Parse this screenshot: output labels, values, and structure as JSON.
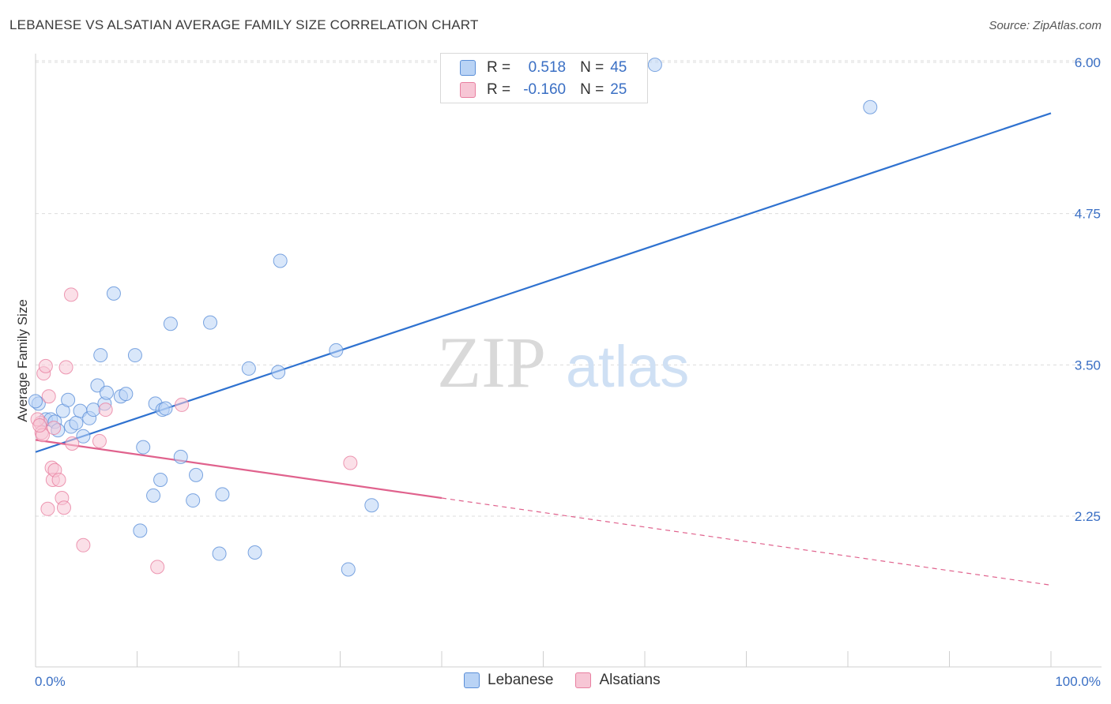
{
  "header": {
    "title": "LEBANESE VS ALSATIAN AVERAGE FAMILY SIZE CORRELATION CHART",
    "source": "Source: ZipAtlas.com"
  },
  "watermark": {
    "zip": "ZIP",
    "atlas": "atlas"
  },
  "legend_top": [
    {
      "r_label": "R =",
      "r_value": "0.518",
      "n_label": "N =",
      "n_value": "45"
    },
    {
      "r_label": "R =",
      "r_value": "-0.160",
      "n_label": "N =",
      "n_value": "25"
    }
  ],
  "legend_bottom": [
    {
      "label": "Lebanese"
    },
    {
      "label": "Alsatians"
    }
  ],
  "colors": {
    "lebanese_fill": "#b9d3f5",
    "lebanese_stroke": "#5b8fd8",
    "lebanese_line": "#2f72d0",
    "alsatian_fill": "#f7c6d5",
    "alsatian_stroke": "#e87fa0",
    "alsatian_line": "#e0628d",
    "tick_label": "#3a6fc4",
    "grid": "#dcdcdc"
  },
  "chart_data": {
    "type": "scatter",
    "title": "LEBANESE VS ALSATIAN AVERAGE FAMILY SIZE CORRELATION CHART",
    "xlabel": "",
    "ylabel": "Average Family Size",
    "xlim": [
      0,
      100
    ],
    "ylim": [
      1.2,
      6.2
    ],
    "y_ticks": [
      2.25,
      3.5,
      4.75,
      6.0
    ],
    "y_tick_labels": [
      "2.25",
      "3.50",
      "4.75",
      "6.00"
    ],
    "x_tick_labels": [
      "0.0%",
      "100.0%"
    ],
    "x_minor_ticks": [
      0,
      10,
      20,
      30,
      40,
      50,
      60,
      70,
      80,
      90,
      100
    ],
    "grid": true,
    "series": [
      {
        "name": "Lebanese",
        "points": [
          [
            0.3,
            3.18
          ],
          [
            1.0,
            3.05
          ],
          [
            1.5,
            3.05
          ],
          [
            1.9,
            3.03
          ],
          [
            2.2,
            2.96
          ],
          [
            2.7,
            3.12
          ],
          [
            3.2,
            3.21
          ],
          [
            3.5,
            2.99
          ],
          [
            4.0,
            3.02
          ],
          [
            4.4,
            3.12
          ],
          [
            4.7,
            2.91
          ],
          [
            5.3,
            3.06
          ],
          [
            5.7,
            3.13
          ],
          [
            6.1,
            3.33
          ],
          [
            6.4,
            3.58
          ],
          [
            6.8,
            3.18
          ],
          [
            7.0,
            3.27
          ],
          [
            7.7,
            4.09
          ],
          [
            8.4,
            3.24
          ],
          [
            8.9,
            3.26
          ],
          [
            9.8,
            3.58
          ],
          [
            10.3,
            2.13
          ],
          [
            10.6,
            2.82
          ],
          [
            11.6,
            2.42
          ],
          [
            11.8,
            3.18
          ],
          [
            12.3,
            2.55
          ],
          [
            12.5,
            3.13
          ],
          [
            12.8,
            3.14
          ],
          [
            13.3,
            3.84
          ],
          [
            14.3,
            2.74
          ],
          [
            15.5,
            2.38
          ],
          [
            15.8,
            2.59
          ],
          [
            17.2,
            3.85
          ],
          [
            18.1,
            1.94
          ],
          [
            18.4,
            2.43
          ],
          [
            21.0,
            3.47
          ],
          [
            21.6,
            1.95
          ],
          [
            23.9,
            3.44
          ],
          [
            24.1,
            4.36
          ],
          [
            29.6,
            3.62
          ],
          [
            30.8,
            1.81
          ],
          [
            33.1,
            2.34
          ],
          [
            61.0,
            5.98
          ],
          [
            82.2,
            5.63
          ],
          [
            0.0,
            3.2
          ]
        ],
        "trend": {
          "x": [
            0,
            100
          ],
          "y": [
            2.78,
            5.58
          ]
        }
      },
      {
        "name": "Alsatians",
        "points": [
          [
            0.5,
            3.02
          ],
          [
            0.6,
            2.94
          ],
          [
            0.7,
            2.92
          ],
          [
            0.8,
            3.43
          ],
          [
            1.0,
            3.49
          ],
          [
            1.3,
            3.24
          ],
          [
            1.6,
            2.65
          ],
          [
            1.7,
            2.55
          ],
          [
            1.8,
            2.98
          ],
          [
            1.9,
            2.63
          ],
          [
            1.2,
            2.31
          ],
          [
            2.3,
            2.55
          ],
          [
            2.6,
            2.4
          ],
          [
            2.8,
            2.32
          ],
          [
            3.0,
            3.48
          ],
          [
            3.6,
            2.85
          ],
          [
            3.5,
            4.08
          ],
          [
            4.7,
            2.01
          ],
          [
            6.3,
            2.87
          ],
          [
            6.9,
            3.13
          ],
          [
            12.0,
            1.83
          ],
          [
            14.4,
            3.17
          ],
          [
            31.0,
            2.69
          ],
          [
            0.2,
            3.05
          ],
          [
            0.4,
            3.0
          ]
        ],
        "trend": {
          "x": [
            0,
            100
          ],
          "y": [
            2.88,
            1.68
          ],
          "solid_until_x": 40
        }
      }
    ]
  }
}
